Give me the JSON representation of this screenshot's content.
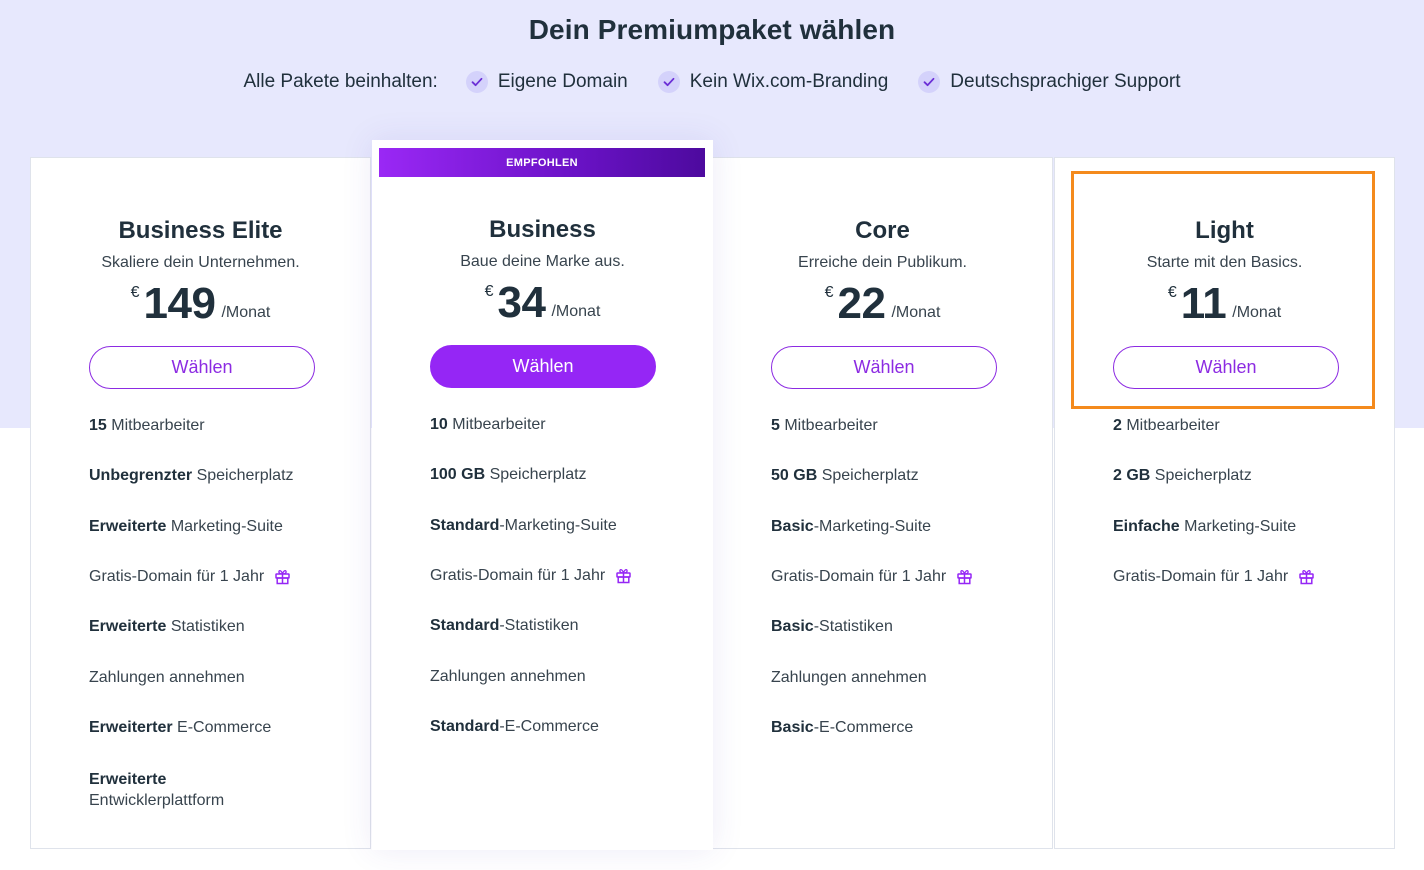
{
  "page": {
    "title": "Dein Premiumpaket wählen",
    "includes_label": "Alle Pakete beinhalten:",
    "includes": [
      "Eigene Domain",
      "Kein Wix.com-Branding",
      "Deutschsprachiger Support"
    ]
  },
  "colors": {
    "accent": "#9526f5",
    "hero_background": "#e7e8fd",
    "highlight": "#f48a1c"
  },
  "plans": [
    {
      "name": "Business Elite",
      "tagline": "Skaliere dein Unternehmen.",
      "currency": "€",
      "price": "149",
      "period": "/Monat",
      "button": "Wählen",
      "features": [
        {
          "strong": "15",
          "text": " Mitbearbeiter"
        },
        {
          "strong": "Unbegrenzter",
          "text": " Speicherplatz"
        },
        {
          "strong": "Erweiterte",
          "text": " Marketing-Suite"
        },
        {
          "strong": "",
          "text": "Gratis-Domain für 1 Jahr",
          "icon": "gift-icon"
        },
        {
          "strong": "Erweiterte",
          "text": " Statistiken"
        },
        {
          "strong": "",
          "text": "Zahlungen annehmen"
        },
        {
          "strong": "Erweiterter",
          "text": " E-Commerce"
        },
        {
          "strong": "Erweiterte",
          "text": "Entwicklerplattform"
        }
      ]
    },
    {
      "name": "Business",
      "tagline": "Baue deine Marke aus.",
      "currency": "€",
      "price": "34",
      "period": "/Monat",
      "button": "Wählen",
      "badge": "EMPFOHLEN",
      "features": [
        {
          "strong": "10",
          "text": " Mitbearbeiter"
        },
        {
          "strong": "100 GB",
          "text": " Speicherplatz"
        },
        {
          "strong": "Standard",
          "text": "-Marketing-Suite"
        },
        {
          "strong": "",
          "text": "Gratis-Domain für 1 Jahr",
          "icon": "gift-icon"
        },
        {
          "strong": "Standard",
          "text": "-Statistiken"
        },
        {
          "strong": "",
          "text": "Zahlungen annehmen"
        },
        {
          "strong": "Standard",
          "text": "-E-Commerce"
        }
      ]
    },
    {
      "name": "Core",
      "tagline": "Erreiche dein Publikum.",
      "currency": "€",
      "price": "22",
      "period": "/Monat",
      "button": "Wählen",
      "features": [
        {
          "strong": "5",
          "text": " Mitbearbeiter"
        },
        {
          "strong": "50 GB",
          "text": " Speicherplatz"
        },
        {
          "strong": "Basic",
          "text": "-Marketing-Suite"
        },
        {
          "strong": "",
          "text": "Gratis-Domain für 1 Jahr",
          "icon": "gift-icon"
        },
        {
          "strong": "Basic",
          "text": "-Statistiken"
        },
        {
          "strong": "",
          "text": "Zahlungen annehmen"
        },
        {
          "strong": "Basic",
          "text": "-E-Commerce"
        }
      ]
    },
    {
      "name": "Light",
      "tagline": "Starte mit den Basics.",
      "currency": "€",
      "price": "11",
      "period": "/Monat",
      "button": "Wählen",
      "features": [
        {
          "strong": "2",
          "text": " Mitbearbeiter"
        },
        {
          "strong": "2 GB",
          "text": " Speicherplatz"
        },
        {
          "strong": "Einfache",
          "text": " Marketing-Suite"
        },
        {
          "strong": "",
          "text": "Gratis-Domain für 1 Jahr",
          "icon": "gift-icon"
        }
      ]
    }
  ]
}
